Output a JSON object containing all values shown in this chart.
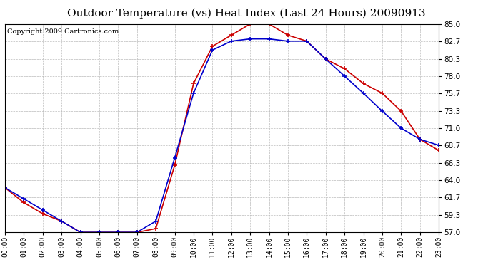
{
  "title": "Outdoor Temperature (vs) Heat Index (Last 24 Hours) 20090913",
  "copyright": "Copyright 2009 Cartronics.com",
  "hours": [
    "00:00",
    "01:00",
    "02:00",
    "03:00",
    "04:00",
    "05:00",
    "06:00",
    "07:00",
    "08:00",
    "09:00",
    "10:00",
    "11:00",
    "12:00",
    "13:00",
    "14:00",
    "15:00",
    "16:00",
    "17:00",
    "18:00",
    "19:00",
    "20:00",
    "21:00",
    "22:00",
    "23:00"
  ],
  "temp": [
    63.0,
    61.5,
    60.0,
    58.5,
    57.0,
    57.0,
    57.0,
    57.0,
    58.5,
    67.0,
    75.7,
    81.5,
    82.7,
    83.0,
    83.0,
    82.7,
    82.7,
    80.3,
    78.0,
    75.7,
    73.3,
    71.0,
    69.5,
    68.7
  ],
  "heat_index": [
    63.0,
    61.0,
    59.5,
    58.5,
    57.0,
    57.0,
    57.0,
    57.0,
    57.5,
    66.0,
    77.0,
    82.0,
    83.5,
    85.0,
    85.0,
    83.5,
    82.7,
    80.3,
    79.0,
    77.0,
    75.7,
    73.3,
    69.5,
    68.0
  ],
  "temp_color": "#0000cc",
  "heat_index_color": "#cc0000",
  "ylim": [
    57.0,
    85.0
  ],
  "yticks": [
    57.0,
    59.3,
    61.7,
    64.0,
    66.3,
    68.7,
    71.0,
    73.3,
    75.7,
    78.0,
    80.3,
    82.7,
    85.0
  ],
  "bg_color": "#ffffff",
  "grid_color": "#bbbbbb",
  "title_fontsize": 11,
  "copyright_fontsize": 7
}
